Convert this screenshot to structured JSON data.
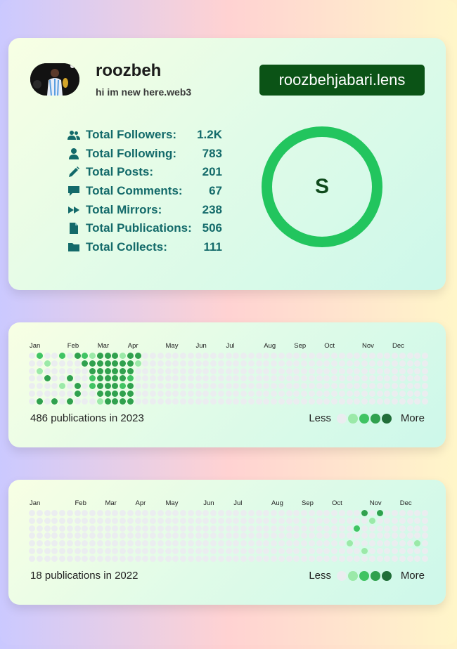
{
  "profile": {
    "name": "roozbeh",
    "bio": "hi im new here.web3",
    "handle": "roozbehjabari.lens",
    "score_letter": "S",
    "accent_color": "#22c55e",
    "stats": [
      {
        "icon": "users-icon",
        "label": "Total Followers:",
        "value": "1.2K"
      },
      {
        "icon": "user-icon",
        "label": "Total Following:",
        "value": "783"
      },
      {
        "icon": "pencil-icon",
        "label": "Total Posts:",
        "value": "201"
      },
      {
        "icon": "comment-icon",
        "label": "Total Comments:",
        "value": "67"
      },
      {
        "icon": "forward-icon",
        "label": "Total Mirrors:",
        "value": "238"
      },
      {
        "icon": "file-icon",
        "label": "Total Publications:",
        "value": "506"
      },
      {
        "icon": "folder-icon",
        "label": "Total Collects:",
        "value": "111"
      }
    ]
  },
  "months": [
    "Jan",
    "Feb",
    "Mar",
    "Apr",
    "May",
    "Jun",
    "Jul",
    "Aug",
    "Sep",
    "Oct",
    "Nov",
    "Dec"
  ],
  "legend": {
    "less": "Less",
    "more": "More",
    "colors": [
      "#ebedf0",
      "#9be9a8",
      "#40c463",
      "#30a14e",
      "#216e39"
    ]
  },
  "heatmaps": [
    {
      "summary": "486 publications in 2023",
      "month_weeks": [
        0,
        5,
        9,
        13,
        18,
        22,
        26,
        31,
        35,
        39,
        44,
        48
      ],
      "active": [
        [
          1,
          0,
          2
        ],
        [
          1,
          2,
          1
        ],
        [
          1,
          6,
          3
        ],
        [
          2,
          1,
          1
        ],
        [
          2,
          3,
          3
        ],
        [
          3,
          6,
          3
        ],
        [
          4,
          0,
          2
        ],
        [
          4,
          4,
          1
        ],
        [
          5,
          3,
          3
        ],
        [
          5,
          6,
          3
        ],
        [
          6,
          0,
          3
        ],
        [
          6,
          4,
          3
        ],
        [
          6,
          5,
          3
        ],
        [
          7,
          0,
          2
        ],
        [
          7,
          1,
          3
        ],
        [
          8,
          0,
          1
        ],
        [
          8,
          1,
          3
        ],
        [
          8,
          2,
          3
        ],
        [
          8,
          3,
          2
        ],
        [
          8,
          4,
          2
        ],
        [
          9,
          0,
          3
        ],
        [
          9,
          1,
          3
        ],
        [
          9,
          2,
          3
        ],
        [
          9,
          3,
          3
        ],
        [
          9,
          4,
          3
        ],
        [
          9,
          5,
          3
        ],
        [
          9,
          6,
          1
        ],
        [
          10,
          0,
          3
        ],
        [
          10,
          1,
          3
        ],
        [
          10,
          2,
          3
        ],
        [
          10,
          3,
          3
        ],
        [
          10,
          4,
          3
        ],
        [
          10,
          5,
          3
        ],
        [
          10,
          6,
          3
        ],
        [
          11,
          0,
          3
        ],
        [
          11,
          1,
          3
        ],
        [
          11,
          2,
          3
        ],
        [
          11,
          3,
          3
        ],
        [
          11,
          4,
          3
        ],
        [
          11,
          5,
          3
        ],
        [
          11,
          6,
          3
        ],
        [
          12,
          0,
          1
        ],
        [
          12,
          1,
          3
        ],
        [
          12,
          2,
          3
        ],
        [
          12,
          3,
          3
        ],
        [
          12,
          4,
          2
        ],
        [
          12,
          5,
          3
        ],
        [
          12,
          6,
          3
        ],
        [
          13,
          0,
          3
        ],
        [
          13,
          1,
          3
        ],
        [
          13,
          2,
          3
        ],
        [
          13,
          3,
          2
        ],
        [
          13,
          4,
          3
        ],
        [
          13,
          5,
          3
        ],
        [
          13,
          6,
          3
        ],
        [
          14,
          0,
          3
        ],
        [
          14,
          1,
          1
        ]
      ]
    },
    {
      "summary": "18 publications in 2022",
      "month_weeks": [
        0,
        6,
        10,
        14,
        18,
        23,
        27,
        32,
        36,
        40,
        45,
        49
      ],
      "active": [
        [
          42,
          4,
          1
        ],
        [
          44,
          5,
          1
        ],
        [
          43,
          2,
          2
        ],
        [
          44,
          0,
          3
        ],
        [
          46,
          0,
          3
        ],
        [
          45,
          1,
          1
        ],
        [
          51,
          4,
          1
        ]
      ]
    }
  ]
}
